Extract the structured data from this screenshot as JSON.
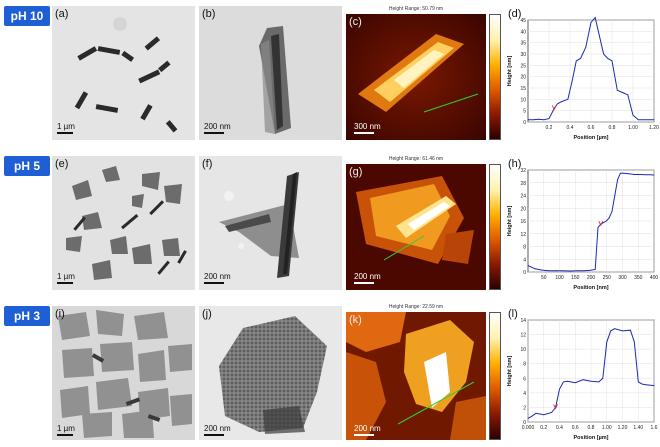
{
  "rows": [
    {
      "ph": "pH 10",
      "labels": [
        "(a)",
        "(b)",
        "(c)",
        "(d)"
      ],
      "scales": [
        "1 µm",
        "200 nm",
        "300 nm"
      ],
      "afm_title": "Height Range: 50.79 nm",
      "colorbar_ticks": [],
      "chart_data": {
        "type": "line",
        "xlabel": "Position [µm]",
        "ylabel": "Height [nm]",
        "xlim": [
          0,
          1.2
        ],
        "ylim": [
          0,
          45
        ],
        "xticks": [
          "0.2",
          "0.4",
          "0.6",
          "0.8",
          "1.00",
          "1.20"
        ],
        "yticks": [
          "0",
          "5",
          "10",
          "15",
          "20",
          "25",
          "30",
          "35",
          "40",
          "45"
        ],
        "x": [
          0.0,
          0.05,
          0.1,
          0.15,
          0.2,
          0.25,
          0.28,
          0.32,
          0.38,
          0.42,
          0.46,
          0.5,
          0.55,
          0.6,
          0.64,
          0.68,
          0.72,
          0.76,
          0.8,
          0.85,
          0.9,
          0.95,
          1.0,
          1.05,
          1.1,
          1.15,
          1.2
        ],
        "y": [
          1,
          1,
          1.2,
          1,
          1.5,
          6,
          8,
          9,
          10,
          18,
          27,
          28,
          33,
          44,
          46,
          38,
          30,
          28,
          27,
          14,
          13,
          12,
          3,
          1,
          1,
          1,
          1
        ]
      }
    },
    {
      "ph": "pH 5",
      "labels": [
        "(e)",
        "(f)",
        "(g)",
        "(h)"
      ],
      "scales": [
        "1 µm",
        "200 nm",
        "200 nm"
      ],
      "afm_title": "Height Range: 61.46 nm",
      "colorbar_ticks": [],
      "chart_data": {
        "type": "line",
        "xlabel": "Position [nm]",
        "ylabel": "Height [nm]",
        "xlim": [
          0,
          450
        ],
        "ylim": [
          0,
          32
        ],
        "xticks": [
          "50",
          "100",
          "150",
          "200",
          "250",
          "300",
          "350",
          "400"
        ],
        "yticks": [
          "0",
          "4",
          "8",
          "12",
          "16",
          "20",
          "24",
          "28",
          "32"
        ],
        "x": [
          0,
          25,
          50,
          75,
          100,
          125,
          150,
          175,
          200,
          220,
          240,
          250,
          260,
          270,
          280,
          290,
          300,
          310,
          320,
          330,
          340,
          360,
          380,
          400,
          420,
          440,
          450
        ],
        "y": [
          2,
          1,
          0.6,
          0.4,
          0.4,
          0.4,
          0.3,
          0.4,
          0.4,
          0.5,
          0.8,
          14,
          15,
          15.5,
          16,
          17,
          19,
          24,
          29,
          31,
          31,
          30.8,
          30.6,
          30.6,
          30.5,
          30.5,
          30.4
        ]
      }
    },
    {
      "ph": "pH 3",
      "labels": [
        "(i)",
        "(j)",
        "(k)",
        "(l)"
      ],
      "scales": [
        "1 µm",
        "200 nm",
        "200 nm"
      ],
      "afm_title": "Height Range: 22.59 nm",
      "colorbar_ticks": [],
      "chart_data": {
        "type": "line",
        "xlabel": "Position [µm]",
        "ylabel": "Height [nm]",
        "xlim": [
          0,
          1.6
        ],
        "ylim": [
          0,
          14
        ],
        "xticks": [
          "0.000",
          "0.2",
          "0.4",
          "0.6",
          "0.8",
          "1.00",
          "1.20",
          "1.40",
          "1.6"
        ],
        "yticks": [
          "0",
          "2",
          "4",
          "6",
          "8",
          "10",
          "12",
          "14"
        ],
        "x": [
          0.0,
          0.05,
          0.1,
          0.2,
          0.3,
          0.35,
          0.4,
          0.45,
          0.5,
          0.6,
          0.7,
          0.8,
          0.9,
          0.95,
          1.0,
          1.05,
          1.1,
          1.2,
          1.3,
          1.35,
          1.4,
          1.45,
          1.5,
          1.6
        ],
        "y": [
          0.5,
          0.8,
          1.2,
          1.0,
          1.3,
          2,
          4.5,
          5.5,
          5.6,
          5.4,
          5.8,
          5.6,
          5.5,
          6,
          11,
          12.5,
          12.8,
          12.5,
          12.6,
          11,
          5.5,
          5.2,
          5.1,
          5.0
        ]
      }
    }
  ]
}
